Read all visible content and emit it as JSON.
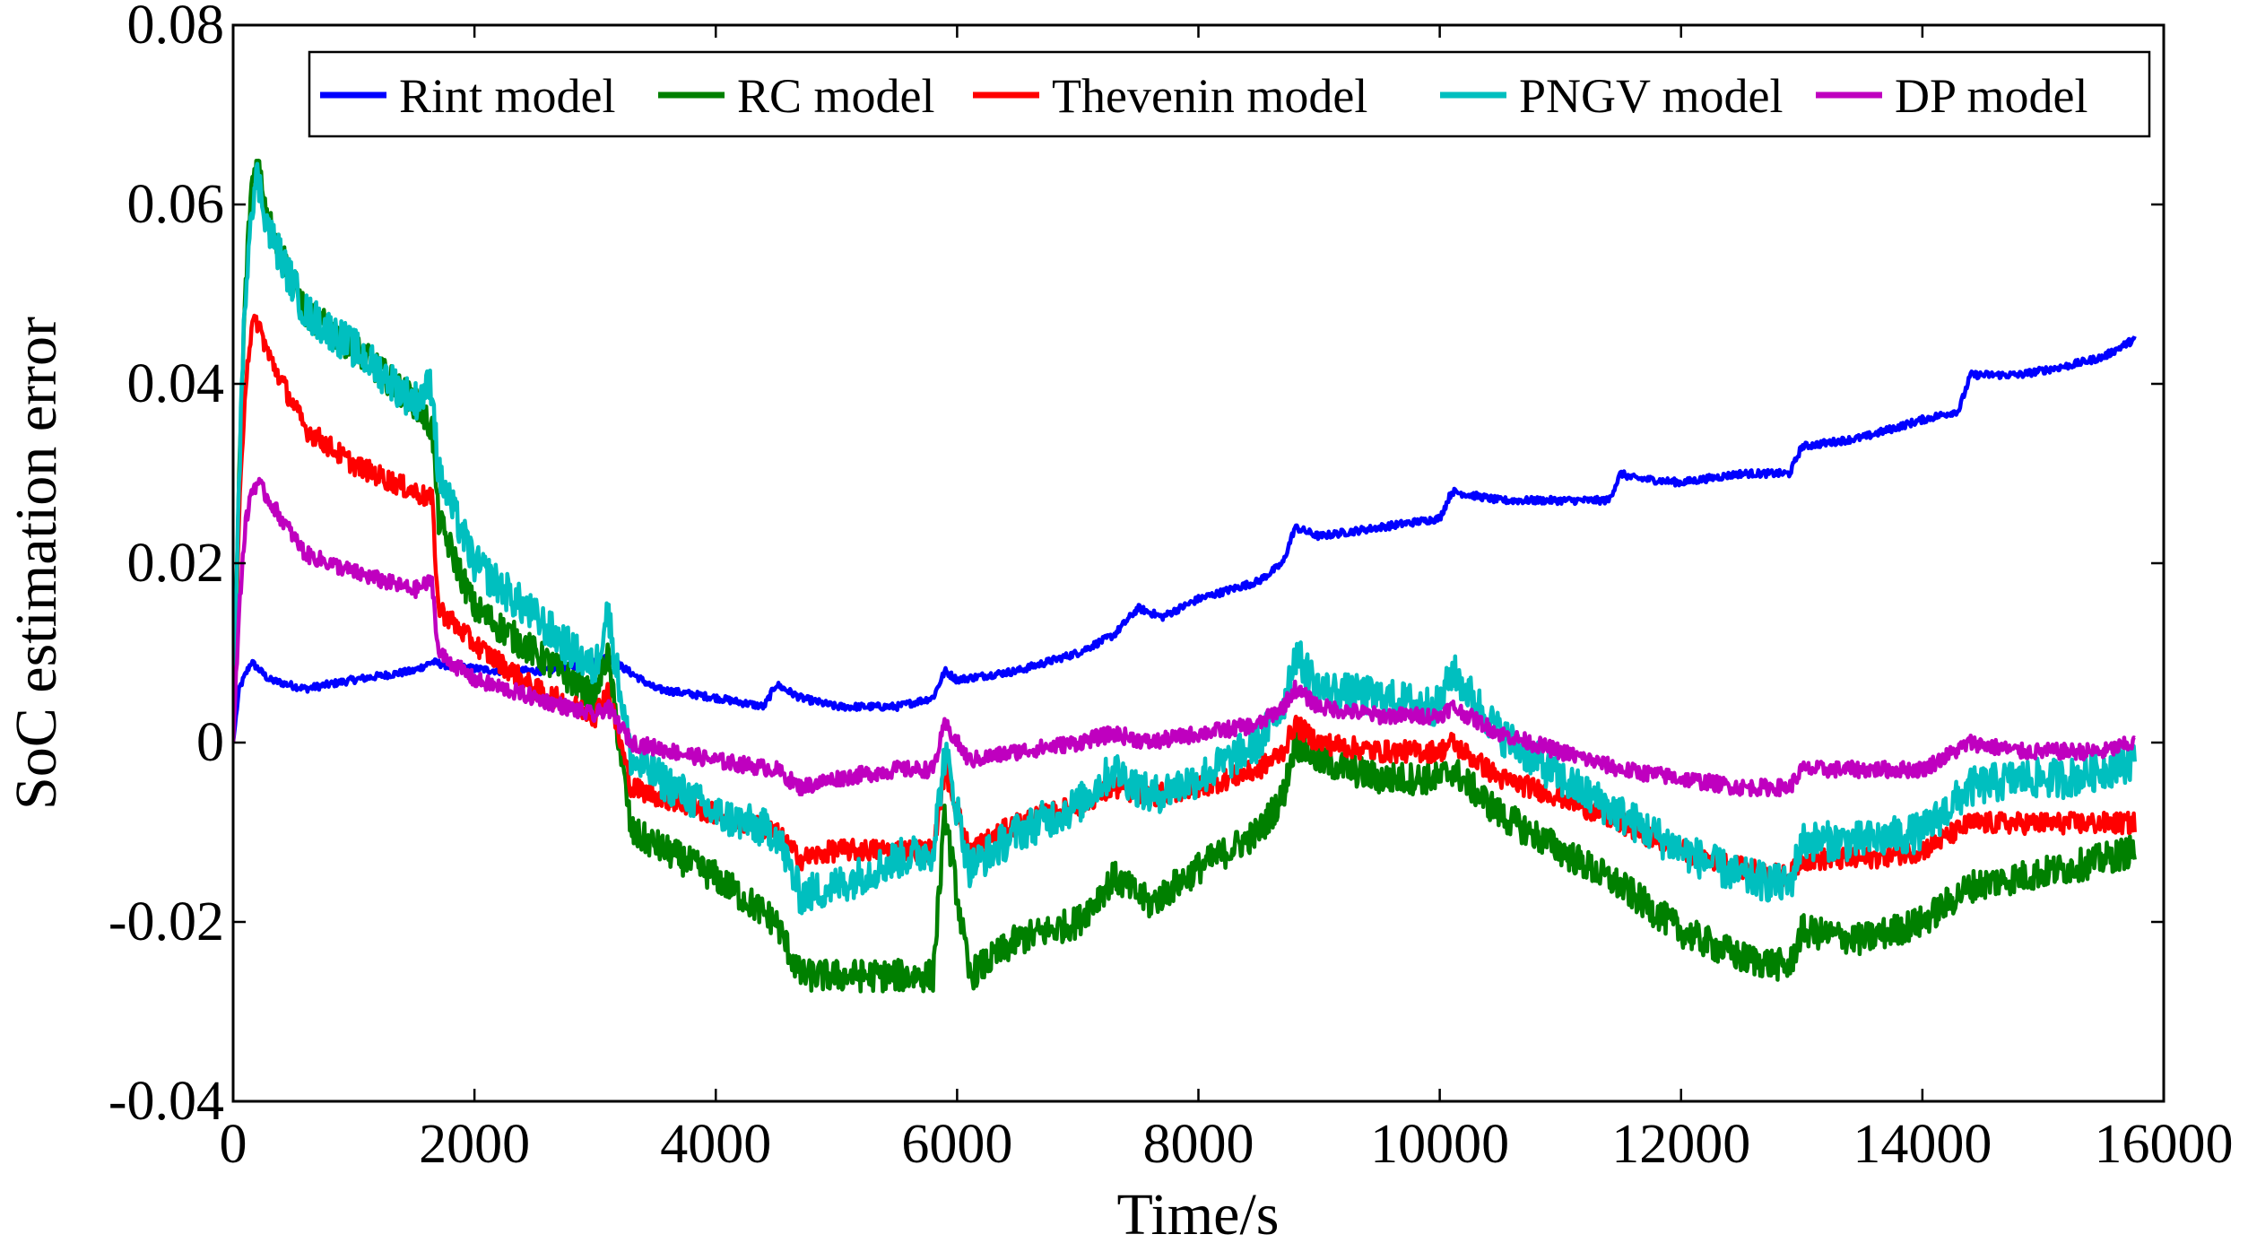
{
  "chart_data": {
    "type": "line",
    "title": "",
    "xlabel": "Time/s",
    "ylabel": "SoC estimation error",
    "xlim": [
      0,
      16000
    ],
    "ylim": [
      -0.04,
      0.08
    ],
    "xticks": [
      0,
      2000,
      4000,
      6000,
      8000,
      10000,
      12000,
      14000,
      16000
    ],
    "xtick_labels": [
      "0",
      "2000",
      "4000",
      "6000",
      "8000",
      "10000",
      "12000",
      "14000",
      "16000"
    ],
    "yticks": [
      -0.04,
      -0.02,
      0,
      0.02,
      0.04,
      0.06,
      0.08
    ],
    "ytick_labels": [
      "-0.04",
      "-0.02",
      "0",
      "0.02",
      "0.04",
      "0.06",
      "0.08"
    ],
    "grid": false,
    "legend_position": "top-right",
    "series": [
      {
        "name": "Rint model",
        "color": "#0000ff",
        "noise": 0.0004,
        "x": [
          0,
          50,
          150,
          300,
          600,
          1000,
          1500,
          1650,
          1800,
          2200,
          2600,
          3000,
          3100,
          3500,
          4000,
          4400,
          4500,
          4700,
          5000,
          5500,
          5800,
          5900,
          6000,
          6500,
          7000,
          7300,
          7500,
          7700,
          8000,
          8500,
          8700,
          8800,
          9000,
          9500,
          10000,
          10100,
          10300,
          10500,
          11000,
          11400,
          11500,
          11600,
          12000,
          12500,
          12900,
          13000,
          13500,
          14000,
          14300,
          14400,
          14800,
          15200,
          15500,
          15760
        ],
        "y": [
          0,
          0.006,
          0.009,
          0.007,
          0.006,
          0.007,
          0.008,
          0.009,
          0.0085,
          0.008,
          0.008,
          0.009,
          0.0095,
          0.006,
          0.005,
          0.004,
          0.0065,
          0.005,
          0.004,
          0.004,
          0.005,
          0.008,
          0.007,
          0.008,
          0.01,
          0.012,
          0.015,
          0.014,
          0.016,
          0.018,
          0.02,
          0.024,
          0.023,
          0.024,
          0.025,
          0.028,
          0.0275,
          0.027,
          0.027,
          0.027,
          0.03,
          0.0295,
          0.029,
          0.03,
          0.03,
          0.033,
          0.034,
          0.036,
          0.037,
          0.041,
          0.041,
          0.042,
          0.043,
          0.045
        ]
      },
      {
        "name": "RC model",
        "color": "#008000",
        "noise": 0.0018,
        "x": [
          0,
          50,
          100,
          150,
          200,
          300,
          600,
          1000,
          1500,
          1650,
          1700,
          2000,
          2500,
          3000,
          3100,
          3300,
          4000,
          4500,
          4700,
          5000,
          5500,
          5800,
          5900,
          6100,
          6500,
          7000,
          7300,
          7600,
          8000,
          8500,
          8700,
          8800,
          9000,
          9500,
          10000,
          10100,
          10500,
          11000,
          11500,
          12000,
          12500,
          12900,
          13000,
          13500,
          14000,
          14400,
          14800,
          15200,
          15500,
          15760
        ],
        "y": [
          0,
          0.03,
          0.05,
          0.062,
          0.065,
          0.058,
          0.048,
          0.044,
          0.038,
          0.035,
          0.025,
          0.015,
          0.01,
          0.005,
          0.01,
          -0.01,
          -0.015,
          -0.02,
          -0.026,
          -0.026,
          -0.026,
          -0.026,
          -0.008,
          -0.026,
          -0.022,
          -0.02,
          -0.015,
          -0.018,
          -0.014,
          -0.01,
          -0.006,
          0.0,
          -0.002,
          -0.004,
          -0.004,
          -0.003,
          -0.008,
          -0.012,
          -0.016,
          -0.021,
          -0.024,
          -0.025,
          -0.021,
          -0.022,
          -0.02,
          -0.016,
          -0.015,
          -0.014,
          -0.013,
          -0.012
        ]
      },
      {
        "name": "Thevenin model",
        "color": "#ff0000",
        "noise": 0.0012,
        "x": [
          0,
          50,
          100,
          150,
          200,
          300,
          600,
          1000,
          1500,
          1650,
          1700,
          2000,
          2500,
          3000,
          3100,
          3300,
          4000,
          4500,
          4700,
          5000,
          5500,
          5800,
          5900,
          6100,
          6500,
          7000,
          7300,
          7600,
          8000,
          8500,
          8700,
          8800,
          9000,
          9500,
          10000,
          10100,
          10500,
          11000,
          11500,
          12000,
          12500,
          12900,
          13000,
          13500,
          14000,
          14400,
          14800,
          15200,
          15500,
          15760
        ],
        "y": [
          0,
          0.025,
          0.04,
          0.046,
          0.047,
          0.043,
          0.035,
          0.031,
          0.028,
          0.027,
          0.015,
          0.011,
          0.006,
          0.003,
          0.006,
          -0.005,
          -0.008,
          -0.01,
          -0.013,
          -0.012,
          -0.012,
          -0.012,
          -0.003,
          -0.012,
          -0.009,
          -0.007,
          -0.005,
          -0.006,
          -0.005,
          -0.003,
          -0.001,
          0.002,
          0.0,
          -0.001,
          -0.001,
          0.0,
          -0.004,
          -0.006,
          -0.009,
          -0.012,
          -0.014,
          -0.015,
          -0.013,
          -0.013,
          -0.012,
          -0.009,
          -0.009,
          -0.009,
          -0.009,
          -0.009
        ]
      },
      {
        "name": "PNGV model",
        "color": "#00bfbf",
        "noise": 0.0022,
        "x": [
          0,
          50,
          100,
          150,
          200,
          300,
          600,
          1000,
          1500,
          1650,
          1700,
          2000,
          2500,
          3000,
          3100,
          3300,
          4000,
          4500,
          4700,
          5000,
          5500,
          5800,
          5900,
          6100,
          6500,
          7000,
          7300,
          7600,
          8000,
          8500,
          8700,
          8800,
          9000,
          9500,
          10000,
          10100,
          10500,
          11000,
          11500,
          12000,
          12500,
          12900,
          13000,
          13500,
          14000,
          14400,
          14800,
          15200,
          15500,
          15760
        ],
        "y": [
          0,
          0.03,
          0.05,
          0.06,
          0.063,
          0.057,
          0.048,
          0.044,
          0.038,
          0.04,
          0.03,
          0.02,
          0.014,
          0.008,
          0.015,
          -0.002,
          -0.008,
          -0.01,
          -0.017,
          -0.016,
          -0.013,
          -0.012,
          -0.001,
          -0.014,
          -0.01,
          -0.007,
          -0.003,
          -0.006,
          -0.004,
          0.0,
          0.004,
          0.01,
          0.006,
          0.005,
          0.004,
          0.008,
          0.001,
          -0.004,
          -0.008,
          -0.012,
          -0.015,
          -0.016,
          -0.011,
          -0.011,
          -0.01,
          -0.005,
          -0.004,
          -0.004,
          -0.003,
          -0.002
        ]
      },
      {
        "name": "DP model",
        "color": "#bf00bf",
        "noise": 0.0009,
        "x": [
          0,
          50,
          100,
          150,
          200,
          300,
          600,
          1000,
          1500,
          1650,
          1700,
          2000,
          2500,
          3000,
          3100,
          3300,
          4000,
          4500,
          4700,
          5000,
          5500,
          5800,
          5900,
          6100,
          6500,
          7000,
          7300,
          7600,
          8000,
          8500,
          8700,
          8800,
          9000,
          9500,
          10000,
          10100,
          10500,
          11000,
          11500,
          12000,
          12500,
          12900,
          13000,
          13500,
          14000,
          14400,
          14800,
          15200,
          15500,
          15760
        ],
        "y": [
          0,
          0.015,
          0.024,
          0.028,
          0.029,
          0.027,
          0.021,
          0.019,
          0.017,
          0.018,
          0.01,
          0.007,
          0.005,
          0.003,
          0.004,
          0.0,
          -0.002,
          -0.003,
          -0.005,
          -0.004,
          -0.003,
          -0.003,
          0.002,
          -0.002,
          -0.001,
          0.0,
          0.001,
          0.0,
          0.001,
          0.002,
          0.004,
          0.006,
          0.004,
          0.003,
          0.003,
          0.004,
          0.001,
          -0.001,
          -0.003,
          -0.004,
          -0.005,
          -0.005,
          -0.003,
          -0.003,
          -0.003,
          0.0,
          -0.001,
          -0.001,
          -0.001,
          0.0
        ]
      }
    ]
  }
}
